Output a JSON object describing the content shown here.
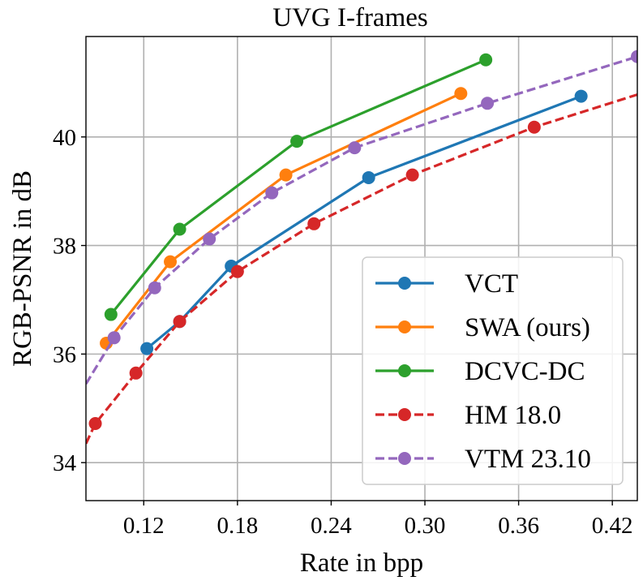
{
  "chart_data": {
    "type": "line",
    "title": "UVG I-frames",
    "xlabel": "Rate in bpp",
    "ylabel": "RGB-PSNR in dB",
    "xlim": [
      0.083,
      0.436
    ],
    "ylim": [
      33.3,
      41.85
    ],
    "xticks": [
      0.12,
      0.18,
      0.24,
      0.3,
      0.36,
      0.42
    ],
    "xtick_labels": [
      "0.12",
      "0.18",
      "0.24",
      "0.30",
      "0.36",
      "0.42"
    ],
    "yticks": [
      34,
      36,
      38,
      40
    ],
    "ytick_labels": [
      "34",
      "36",
      "38",
      "40"
    ],
    "grid": true,
    "legend_position": "lower-right",
    "series": [
      {
        "name": "VCT",
        "color": "#1f77b4",
        "dashed": false,
        "x": [
          0.122,
          0.143,
          0.176,
          0.264,
          0.4
        ],
        "y": [
          36.1,
          36.6,
          37.62,
          39.25,
          40.75
        ]
      },
      {
        "name": "SWA (ours)",
        "color": "#ff7f0e",
        "dashed": false,
        "x": [
          0.096,
          0.137,
          0.211,
          0.323
        ],
        "y": [
          36.2,
          37.7,
          39.3,
          40.8
        ]
      },
      {
        "name": "DCVC-DC",
        "color": "#2ca02c",
        "dashed": false,
        "x": [
          0.099,
          0.143,
          0.218,
          0.339
        ],
        "y": [
          36.73,
          38.3,
          39.92,
          41.42
        ]
      },
      {
        "name": "HM 18.0",
        "color": "#d62728",
        "dashed": true,
        "x": [
          0.089,
          0.115,
          0.143,
          0.18,
          0.229,
          0.292,
          0.37
        ],
        "y": [
          34.72,
          35.65,
          36.6,
          37.52,
          38.4,
          39.3,
          40.18
        ],
        "extend_start": [
          0.083,
          34.35
        ],
        "extend_end": [
          0.436,
          40.78
        ]
      },
      {
        "name": "VTM 23.10",
        "color": "#9467bd",
        "dashed": true,
        "x": [
          0.101,
          0.127,
          0.162,
          0.202,
          0.255,
          0.34,
          0.436
        ],
        "y": [
          36.3,
          37.22,
          38.12,
          38.97,
          39.8,
          40.62,
          41.48
        ],
        "extend_start": [
          0.083,
          35.45
        ]
      }
    ]
  }
}
